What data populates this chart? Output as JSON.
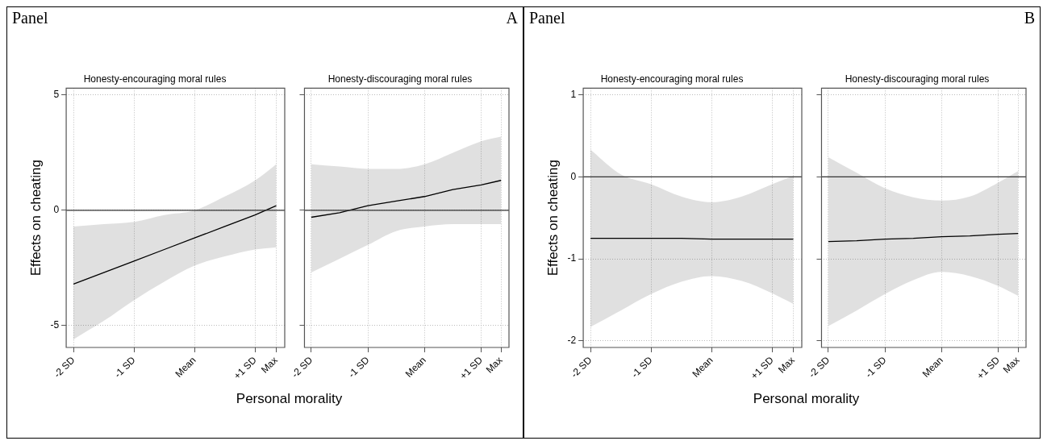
{
  "chart_data": [
    {
      "type": "line",
      "annotations": [
        "Panel",
        "A"
      ],
      "title": "Honesty-encouraging moral rules",
      "xlabel": "Personal morality",
      "ylabel": "Effects on cheating",
      "xlim": [
        -2.12,
        1.49
      ],
      "ylim": [
        -5.95,
        5.3
      ],
      "xticks": [
        {
          "value": -2,
          "label": "-2 SD"
        },
        {
          "value": -1,
          "label": "-1 SD"
        },
        {
          "value": 0,
          "label": "Mean"
        },
        {
          "value": 1,
          "label": "+1 SD"
        },
        {
          "value": 1.35,
          "label": "Max"
        }
      ],
      "yticks": [
        -5,
        0,
        5
      ],
      "grid": true,
      "ref_lines": [
        {
          "axis": "y",
          "value": 0,
          "color": "#333333"
        }
      ],
      "series": [
        {
          "color": "#000000",
          "x": [
            -2,
            -1.5,
            -1,
            -0.5,
            0,
            0.5,
            1,
            1.35
          ],
          "values": [
            -3.2,
            -2.7,
            -2.2,
            -1.7,
            -1.2,
            -0.7,
            -0.2,
            0.2
          ],
          "lower": [
            -5.6,
            -4.8,
            -3.9,
            -3.1,
            -2.4,
            -2.0,
            -1.7,
            -1.6
          ],
          "upper": [
            -0.7,
            -0.6,
            -0.5,
            -0.2,
            0.0,
            0.6,
            1.3,
            2.0
          ]
        }
      ]
    },
    {
      "type": "line",
      "title": "Honesty-discouraging moral rules",
      "xlim": [
        -2.12,
        1.49
      ],
      "ylim": [
        -5.95,
        5.3
      ],
      "xticks": [
        {
          "value": -2,
          "label": "-2 SD"
        },
        {
          "value": -1,
          "label": "-1 SD"
        },
        {
          "value": 0,
          "label": "Mean"
        },
        {
          "value": 1,
          "label": "+1 SD"
        },
        {
          "value": 1.35,
          "label": "Max"
        }
      ],
      "yticks": [
        -5,
        0,
        5
      ],
      "grid": true,
      "tick_labels": "x",
      "ref_lines": [
        {
          "axis": "y",
          "value": 0,
          "color": "#333333"
        }
      ],
      "series": [
        {
          "color": "#000000",
          "x": [
            -2,
            -1.5,
            -1,
            -0.5,
            0,
            0.5,
            1,
            1.35
          ],
          "values": [
            -0.3,
            -0.1,
            0.2,
            0.4,
            0.6,
            0.9,
            1.1,
            1.3
          ],
          "lower": [
            -2.7,
            -2.1,
            -1.5,
            -0.9,
            -0.7,
            -0.6,
            -0.6,
            -0.6
          ],
          "upper": [
            2.0,
            1.9,
            1.8,
            1.8,
            2.0,
            2.5,
            3.0,
            3.2
          ]
        }
      ]
    },
    {
      "type": "line",
      "annotations": [
        "Panel",
        "B"
      ],
      "title": "Honesty-encouraging moral rules",
      "xlabel": "Personal morality",
      "ylabel": "Effects on cheating",
      "xlim": [
        -2.12,
        1.49
      ],
      "ylim": [
        -2.08,
        1.08
      ],
      "xticks": [
        {
          "value": -2,
          "label": "-2 SD"
        },
        {
          "value": -1,
          "label": "-1 SD"
        },
        {
          "value": 0,
          "label": "Mean"
        },
        {
          "value": 1,
          "label": "+1 SD"
        },
        {
          "value": 1.35,
          "label": "Max"
        }
      ],
      "yticks": [
        -2,
        -1,
        0,
        1
      ],
      "grid": true,
      "ref_lines": [
        {
          "axis": "y",
          "value": 0,
          "color": "#333333"
        }
      ],
      "series": [
        {
          "color": "#000000",
          "x": [
            -2,
            -1.5,
            -1,
            -0.5,
            0,
            0.5,
            1,
            1.35
          ],
          "values": [
            -0.75,
            -0.75,
            -0.75,
            -0.75,
            -0.76,
            -0.76,
            -0.76,
            -0.76
          ],
          "lower": [
            -1.83,
            -1.63,
            -1.43,
            -1.28,
            -1.21,
            -1.27,
            -1.42,
            -1.55
          ],
          "upper": [
            0.33,
            0.03,
            -0.09,
            -0.24,
            -0.31,
            -0.24,
            -0.09,
            0.01
          ]
        }
      ]
    },
    {
      "type": "line",
      "title": "Honesty-discouraging moral rules",
      "xlim": [
        -2.12,
        1.49
      ],
      "ylim": [
        -2.08,
        1.08
      ],
      "xticks": [
        {
          "value": -2,
          "label": "-2 SD"
        },
        {
          "value": -1,
          "label": "-1 SD"
        },
        {
          "value": 0,
          "label": "Mean"
        },
        {
          "value": 1,
          "label": "+1 SD"
        },
        {
          "value": 1.35,
          "label": "Max"
        }
      ],
      "yticks": [
        -2,
        -1,
        0,
        1
      ],
      "grid": true,
      "tick_labels": "x",
      "ref_lines": [
        {
          "axis": "y",
          "value": 0,
          "color": "#333333"
        }
      ],
      "series": [
        {
          "color": "#000000",
          "x": [
            -2,
            -1.5,
            -1,
            -0.5,
            0,
            0.5,
            1,
            1.35
          ],
          "values": [
            -0.79,
            -0.78,
            -0.76,
            -0.75,
            -0.73,
            -0.72,
            -0.7,
            -0.69
          ],
          "lower": [
            -1.82,
            -1.63,
            -1.43,
            -1.26,
            -1.16,
            -1.21,
            -1.33,
            -1.45
          ],
          "upper": [
            0.24,
            0.05,
            -0.14,
            -0.25,
            -0.29,
            -0.24,
            -0.07,
            0.07
          ]
        }
      ]
    }
  ]
}
